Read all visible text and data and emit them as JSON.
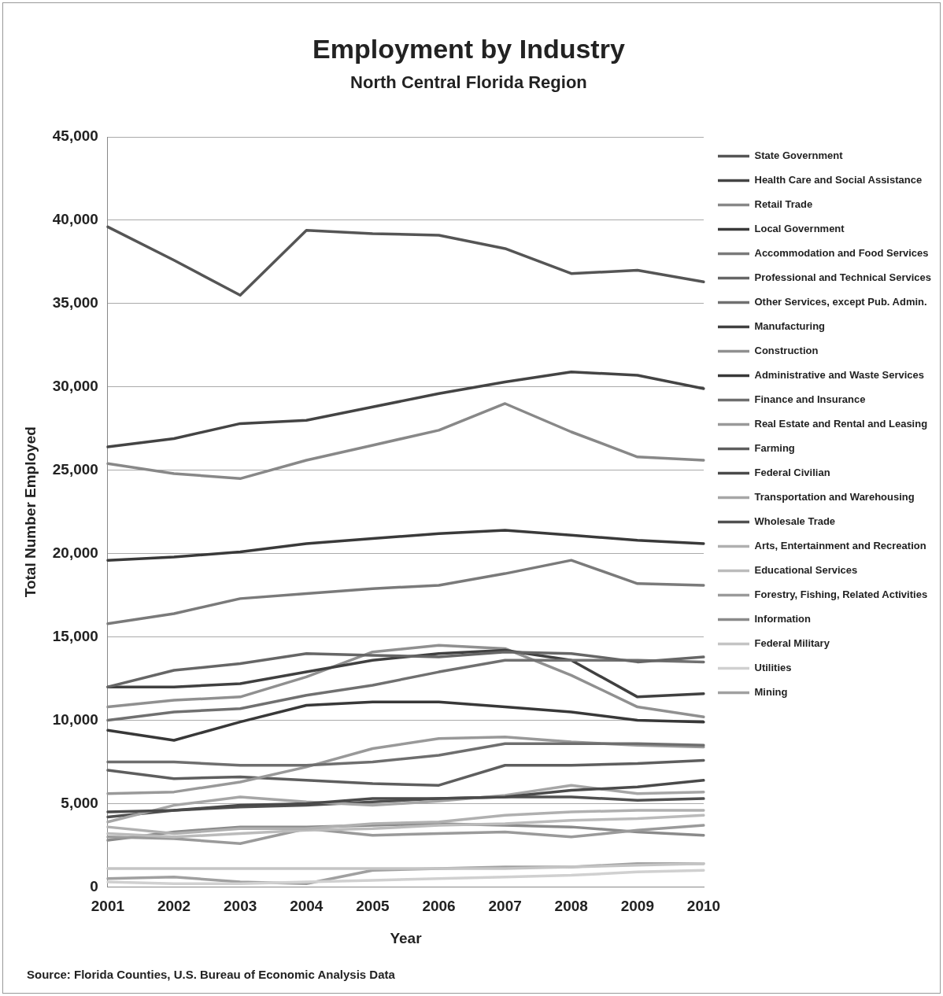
{
  "chart_data": {
    "type": "line",
    "title": "Employment by Industry",
    "subtitle": "North Central Florida Region",
    "xlabel": "Year",
    "ylabel": "Total Number Employed",
    "categories": [
      "2001",
      "2002",
      "2003",
      "2004",
      "2005",
      "2006",
      "2007",
      "2008",
      "2009",
      "2010"
    ],
    "ylim": [
      0,
      45000
    ],
    "yticks": [
      {
        "value": 0,
        "label": "0"
      },
      {
        "value": 5000,
        "label": "5,000"
      },
      {
        "value": 10000,
        "label": "10,000"
      },
      {
        "value": 15000,
        "label": "15,000"
      },
      {
        "value": 20000,
        "label": "20,000"
      },
      {
        "value": 25000,
        "label": "25,000"
      },
      {
        "value": 30000,
        "label": "30,000"
      },
      {
        "value": 35000,
        "label": "35,000"
      },
      {
        "value": 40000,
        "label": "40,000"
      },
      {
        "value": 45000,
        "label": "45,000"
      }
    ],
    "grid": "y",
    "legend": "right",
    "marker": "none",
    "line_style": "solid",
    "series": [
      {
        "name": "State Government",
        "color": "#555555",
        "values": [
          39600,
          37600,
          35500,
          39400,
          39200,
          39100,
          38300,
          36800,
          37000,
          36300
        ]
      },
      {
        "name": "Health Care and Social Assistance",
        "color": "#444444",
        "values": [
          26400,
          26900,
          27800,
          28000,
          28800,
          29600,
          30300,
          30900,
          30700,
          29900
        ]
      },
      {
        "name": "Retail Trade",
        "color": "#888888",
        "values": [
          25400,
          24800,
          24500,
          25600,
          26500,
          27400,
          29000,
          27300,
          25800,
          25600
        ]
      },
      {
        "name": "Local Government",
        "color": "#3a3a3a",
        "values": [
          19600,
          19800,
          20100,
          20600,
          20900,
          21200,
          21400,
          21100,
          20800,
          20600
        ]
      },
      {
        "name": "Accommodation and Food Services",
        "color": "#7a7a7a",
        "values": [
          15800,
          16400,
          17300,
          17600,
          17900,
          18100,
          18800,
          19600,
          18200,
          18100
        ]
      },
      {
        "name": "Professional and Technical Services",
        "color": "#666666",
        "values": [
          12000,
          13000,
          13400,
          14000,
          13900,
          13800,
          14100,
          14000,
          13500,
          13800
        ]
      },
      {
        "name": "Other Services, except Pub. Admin.",
        "color": "#707070",
        "values": [
          10000,
          10500,
          10700,
          11500,
          12100,
          12900,
          13600,
          13600,
          13600,
          13500
        ]
      },
      {
        "name": "Manufacturing",
        "color": "#404040",
        "values": [
          12000,
          12000,
          12200,
          12900,
          13600,
          14000,
          14200,
          13600,
          11400,
          11600
        ]
      },
      {
        "name": "Construction",
        "color": "#909090",
        "values": [
          10800,
          11200,
          11400,
          12600,
          14100,
          14500,
          14300,
          12700,
          10800,
          10200
        ]
      },
      {
        "name": "Administrative and Waste Services",
        "color": "#383838",
        "values": [
          9400,
          8800,
          9900,
          10900,
          11100,
          11100,
          10800,
          10500,
          10000,
          9900
        ]
      },
      {
        "name": "Finance and Insurance",
        "color": "#6e6e6e",
        "values": [
          7500,
          7500,
          7300,
          7300,
          7500,
          7900,
          8600,
          8600,
          8600,
          8500
        ]
      },
      {
        "name": "Real Estate and Rental and Leasing",
        "color": "#999999",
        "values": [
          5600,
          5700,
          6300,
          7200,
          8300,
          8900,
          9000,
          8700,
          8500,
          8400
        ]
      },
      {
        "name": "Farming",
        "color": "#5e5e5e",
        "values": [
          7000,
          6500,
          6600,
          6400,
          6200,
          6100,
          7300,
          7300,
          7400,
          7600
        ]
      },
      {
        "name": "Federal Civilian",
        "color": "#4a4a4a",
        "values": [
          4500,
          4600,
          4900,
          5000,
          5300,
          5300,
          5400,
          5800,
          6000,
          6400
        ]
      },
      {
        "name": "Transportation and Warehousing",
        "color": "#a6a6a6",
        "values": [
          3900,
          4900,
          5400,
          5100,
          4900,
          5150,
          5500,
          6100,
          5600,
          5700
        ]
      },
      {
        "name": "Wholesale Trade",
        "color": "#505050",
        "values": [
          4200,
          4600,
          4800,
          4900,
          5100,
          5300,
          5400,
          5400,
          5200,
          5300
        ]
      },
      {
        "name": "Arts, Entertainment and Recreation",
        "color": "#b0b0b0",
        "values": [
          3600,
          3200,
          3500,
          3500,
          3800,
          3900,
          4300,
          4500,
          4600,
          4600
        ]
      },
      {
        "name": "Educational Services",
        "color": "#bbbbbb",
        "values": [
          3200,
          3000,
          3200,
          3400,
          3500,
          3700,
          3800,
          4000,
          4100,
          4300
        ]
      },
      {
        "name": "Forestry, Fishing, Related Activities",
        "color": "#9a9a9a",
        "values": [
          3000,
          2900,
          2600,
          3500,
          3100,
          3200,
          3300,
          3000,
          3400,
          3700
        ]
      },
      {
        "name": "Information",
        "color": "#8a8a8a",
        "values": [
          2800,
          3300,
          3600,
          3600,
          3700,
          3800,
          3700,
          3600,
          3300,
          3100
        ]
      },
      {
        "name": "Federal Military",
        "color": "#c4c4c4",
        "values": [
          1100,
          1100,
          1100,
          1100,
          1100,
          1100,
          1100,
          1200,
          1300,
          1400
        ]
      },
      {
        "name": "Utilities",
        "color": "#d0d0d0",
        "values": [
          300,
          200,
          200,
          300,
          400,
          500,
          600,
          700,
          900,
          1000
        ]
      },
      {
        "name": "Mining",
        "color": "#a0a0a0",
        "values": [
          500,
          600,
          300,
          200,
          1000,
          1100,
          1200,
          1200,
          1400,
          1400
        ]
      }
    ],
    "annotations": [
      "Source: Florida Counties, U.S. Bureau of Economic Analysis Data"
    ]
  }
}
